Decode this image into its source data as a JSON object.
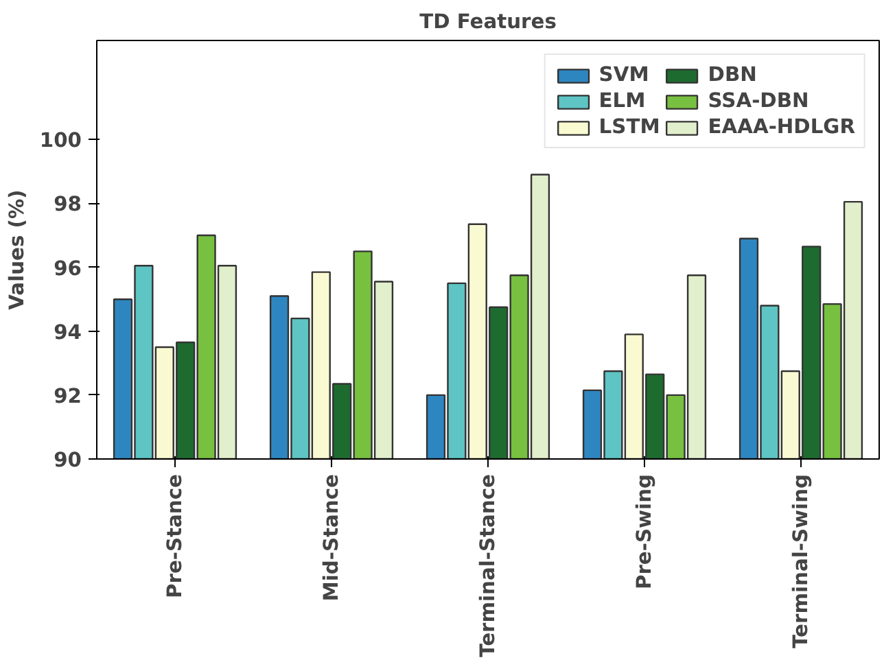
{
  "chart_data": {
    "type": "bar",
    "title": "TD Features",
    "ylabel": "Values (%)",
    "categories": [
      "Pre-Stance",
      "Mid-Stance",
      "Terminal-Stance",
      "Pre-Swing",
      "Terminal-Swing"
    ],
    "series": [
      {
        "name": "SVM",
        "color": "#2e86c1",
        "values": [
          95.0,
          95.1,
          92.0,
          92.15,
          96.9
        ]
      },
      {
        "name": "ELM",
        "color": "#5ec4c4",
        "values": [
          96.05,
          94.4,
          95.5,
          92.75,
          94.8
        ]
      },
      {
        "name": "LSTM",
        "color": "#fafad2",
        "values": [
          93.5,
          95.85,
          97.35,
          93.9,
          92.75
        ]
      },
      {
        "name": "DBN",
        "color": "#1e6b30",
        "values": [
          93.65,
          92.35,
          94.75,
          92.65,
          96.65
        ]
      },
      {
        "name": "SSA-DBN",
        "color": "#78c040",
        "values": [
          97.0,
          96.5,
          95.75,
          92.0,
          94.85
        ]
      },
      {
        "name": "EAAA-HDLGR",
        "color": "#e2efcc",
        "values": [
          96.05,
          95.55,
          98.9,
          95.75,
          98.05
        ]
      }
    ],
    "ylim": [
      90,
      103.1
    ],
    "yticks": [
      90,
      92,
      94,
      96,
      98,
      100
    ],
    "grid": false,
    "legend": "top right"
  }
}
